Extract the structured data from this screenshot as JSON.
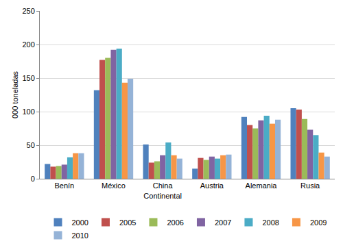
{
  "chart_data": {
    "type": "bar",
    "y_label": "000 toneladas",
    "categories": [
      "Benín",
      "México",
      "China Continental",
      "Austria",
      "Alemania",
      "Rusia"
    ],
    "series": [
      {
        "name": "2000",
        "color": "#4F81BD",
        "values": [
          22,
          132,
          51,
          15,
          92,
          105
        ]
      },
      {
        "name": "2005",
        "color": "#C0504D",
        "values": [
          18,
          177,
          24,
          31,
          80,
          103
        ]
      },
      {
        "name": "2006",
        "color": "#9BBB59",
        "values": [
          19,
          180,
          26,
          28,
          75,
          89
        ]
      },
      {
        "name": "2007",
        "color": "#8064A2",
        "values": [
          21,
          192,
          35,
          33,
          87,
          73
        ]
      },
      {
        "name": "2008",
        "color": "#4BACC6",
        "values": [
          32,
          194,
          54,
          30,
          94,
          65
        ]
      },
      {
        "name": "2009",
        "color": "#F79646",
        "values": [
          38,
          143,
          35,
          35,
          82,
          39
        ]
      },
      {
        "name": "2010",
        "color": "#95B3D7",
        "values": [
          38,
          149,
          30,
          36,
          88,
          33
        ]
      }
    ],
    "ylim": [
      0,
      250
    ],
    "yticks": [
      0,
      50,
      100,
      150,
      200,
      250
    ],
    "grid": true,
    "legend": "bottom"
  }
}
